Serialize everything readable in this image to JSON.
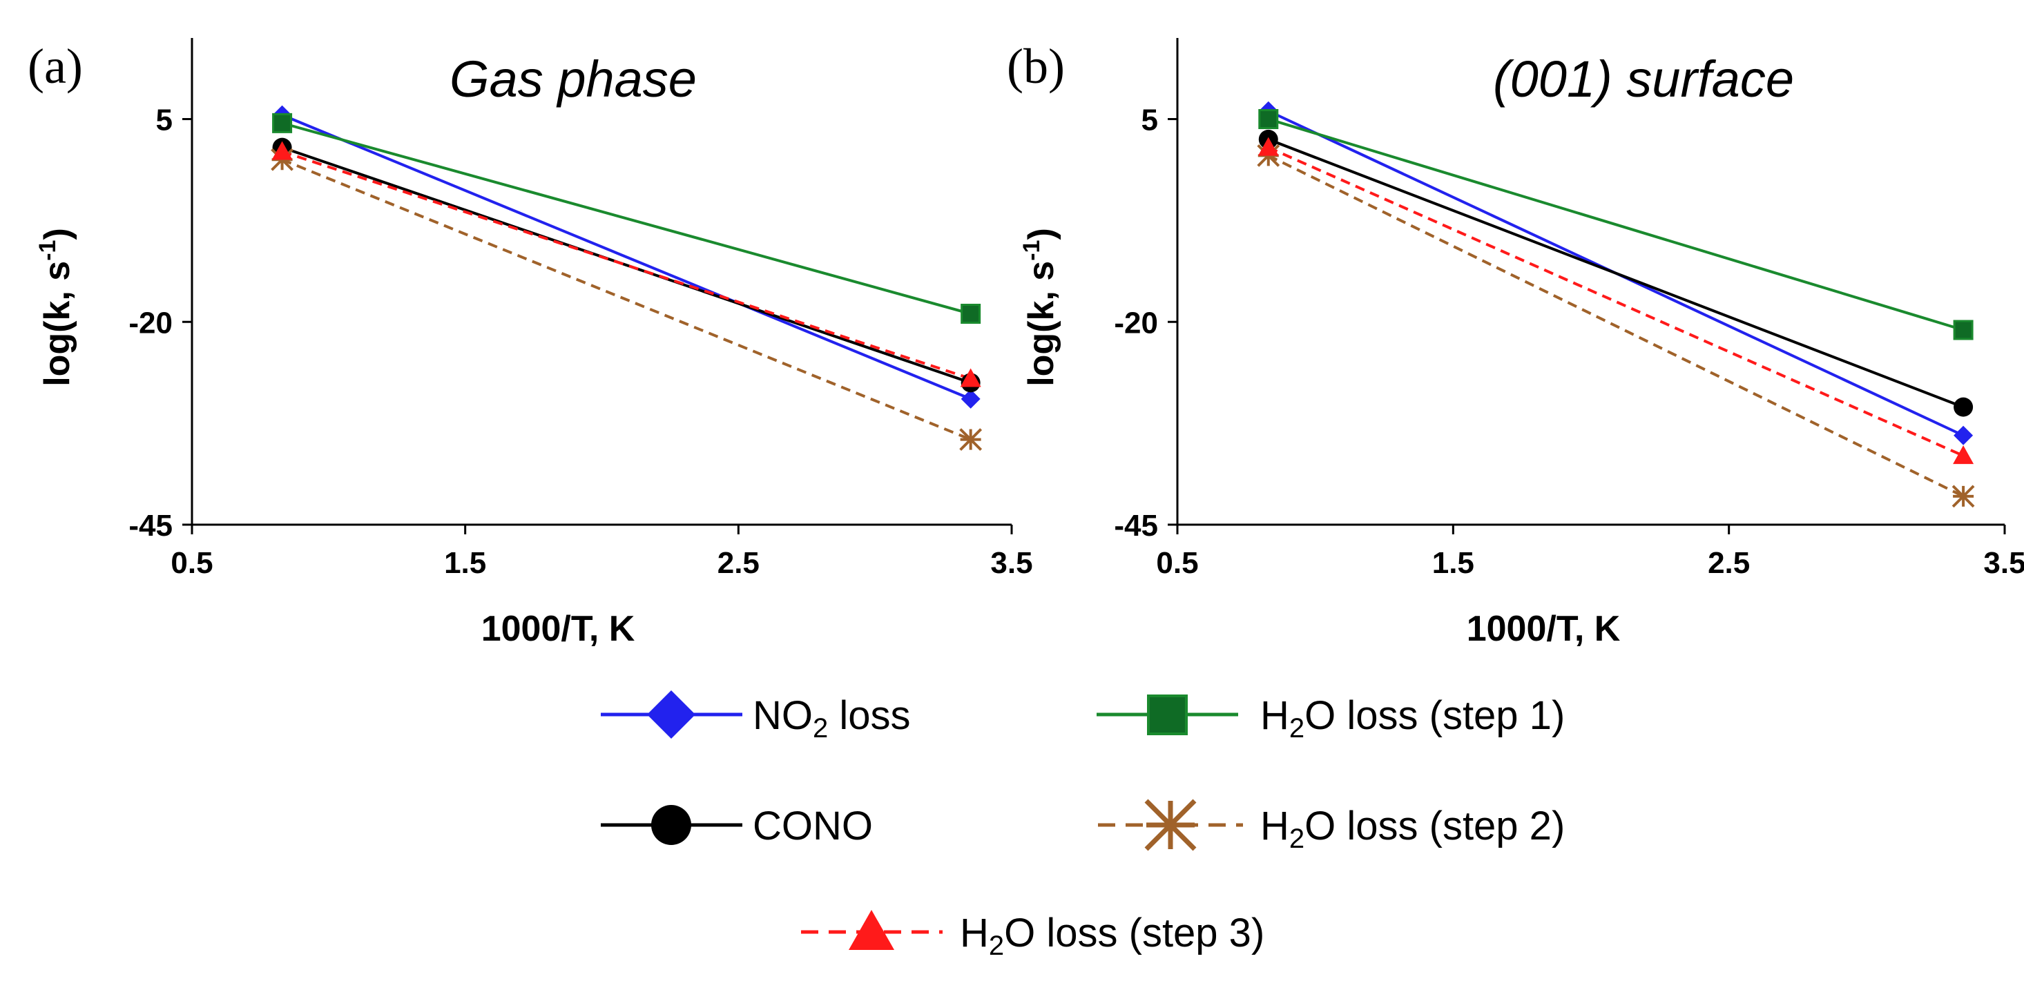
{
  "legend": {
    "no2": {
      "main": "NO",
      "sub": "2",
      "rest": " loss"
    },
    "cono": {
      "main": "CONO"
    },
    "h2o1": {
      "main": "H",
      "sub": "2",
      "rest": "O loss (step 1)"
    },
    "h2o2": {
      "main": "H",
      "sub": "2",
      "rest": "O loss (step 2)"
    },
    "h2o3": {
      "main": "H",
      "sub": "2",
      "rest": "O loss (step 3)"
    }
  },
  "chart_data": [
    {
      "type": "line",
      "panel_label": "(a)",
      "title": "Gas phase",
      "xlabel": "1000/T, K",
      "ylabel": {
        "main": "log(k, s",
        "sup": "-1",
        "end": ")"
      },
      "xlim": [
        0.5,
        3.5
      ],
      "ylim": [
        -45,
        15
      ],
      "xticks": [
        "0.5",
        "1.5",
        "2.5",
        "3.5"
      ],
      "yticks": [
        "5",
        "-20",
        "-45"
      ],
      "x": [
        0.83,
        3.35
      ],
      "series": [
        {
          "name": "NO2 loss",
          "values": [
            5.5,
            -29.5
          ],
          "color": "#2222ee",
          "marker": "diamond",
          "dash": "solid"
        },
        {
          "name": "H2O loss (step 1)",
          "values": [
            4.5,
            -19.0
          ],
          "color": "#1a8a2e",
          "marker": "square",
          "dash": "solid"
        },
        {
          "name": "CONO",
          "values": [
            1.5,
            -27.5
          ],
          "color": "#000000",
          "marker": "circle",
          "dash": "solid"
        },
        {
          "name": "H2O loss (step 2)",
          "values": [
            0.0,
            -34.5
          ],
          "color": "#a0622a",
          "marker": "asterisk",
          "dash": "dashed"
        },
        {
          "name": "H2O loss (step 3)",
          "values": [
            1.0,
            -27.0
          ],
          "color": "#ff1a1a",
          "marker": "triangle",
          "dash": "dashed"
        }
      ]
    },
    {
      "type": "line",
      "panel_label": "(b)",
      "title": "(001) surface",
      "xlabel": "1000/T, K",
      "ylabel": {
        "main": "log(k, s",
        "sup": "-1",
        "end": ")"
      },
      "xlim": [
        0.5,
        3.5
      ],
      "ylim": [
        -45,
        15
      ],
      "xticks": [
        "0.5",
        "1.5",
        "2.5",
        "3.5"
      ],
      "yticks": [
        "5",
        "-20",
        "-45"
      ],
      "x": [
        0.83,
        3.35
      ],
      "series": [
        {
          "name": "NO2 loss",
          "values": [
            6.0,
            -34.0
          ],
          "color": "#2222ee",
          "marker": "diamond",
          "dash": "solid"
        },
        {
          "name": "H2O loss (step 1)",
          "values": [
            5.0,
            -21.0
          ],
          "color": "#1a8a2e",
          "marker": "square",
          "dash": "solid"
        },
        {
          "name": "CONO",
          "values": [
            2.5,
            -30.5
          ],
          "color": "#000000",
          "marker": "circle",
          "dash": "solid"
        },
        {
          "name": "H2O loss (step 2)",
          "values": [
            0.5,
            -41.5
          ],
          "color": "#a0622a",
          "marker": "asterisk",
          "dash": "dashed"
        },
        {
          "name": "H2O loss (step 3)",
          "values": [
            1.5,
            -36.5
          ],
          "color": "#ff1a1a",
          "marker": "triangle",
          "dash": "dashed"
        }
      ]
    }
  ]
}
